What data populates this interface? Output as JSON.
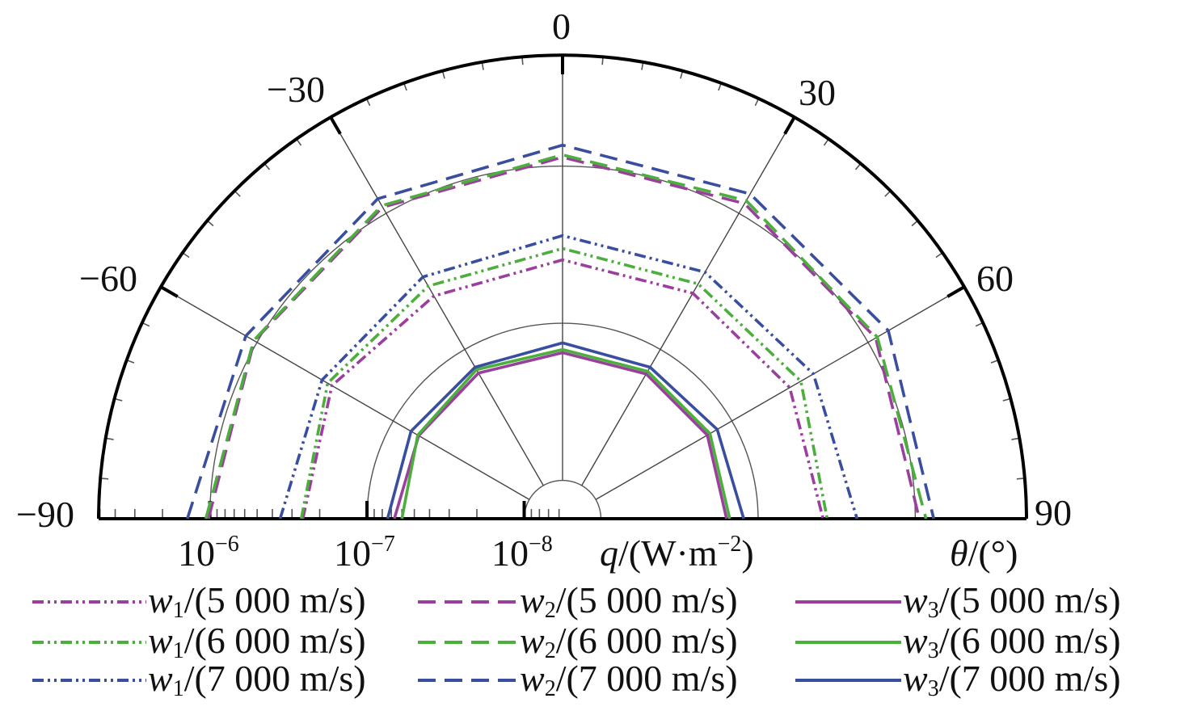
{
  "chart_data": {
    "type": "polar-line",
    "theta_label": {
      "symbol": "θ",
      "unit": "/(°)"
    },
    "r_label": {
      "symbol": "q",
      "unit_prefix": "/(W·m",
      "unit_exp": "−2",
      "unit_suffix": ")"
    },
    "theta_range": [
      -90,
      90
    ],
    "theta_ticks": [
      "−90",
      "−60",
      "−30",
      "0",
      "30",
      "60",
      "90"
    ],
    "theta_tick_values": [
      -90,
      -60,
      -30,
      0,
      30,
      60,
      90
    ],
    "r_scale": "log",
    "rlim": [
      5.7e-09,
      5.1e-06
    ],
    "r_ticks": [
      {
        "value": 1e-06,
        "base": "10",
        "exp": "−6"
      },
      {
        "value": 1e-07,
        "base": "10",
        "exp": "−7"
      },
      {
        "value": 1e-08,
        "base": "10",
        "exp": "−8"
      }
    ],
    "grid": true,
    "legend_position": "bottom",
    "theta": [
      -90,
      -60,
      -30,
      0,
      30,
      60,
      90
    ],
    "series": [
      {
        "name": "w1/(5 000 m/s)",
        "sym": "w",
        "sub": "1",
        "rest": "/(5 000 m/s)",
        "color": "#9b3f9e",
        "style": "dash-dot-dot",
        "values": [
          2.56e-07,
          2.82e-07,
          2.47e-07,
          2.53e-07,
          2.59e-07,
          2.66e-07,
          2.59e-07
        ]
      },
      {
        "name": "w1/(6 000 m/s)",
        "sym": "w",
        "sub": "1",
        "rest": "/(6 000 m/s)",
        "color": "#4cae3c",
        "style": "dash-dot-dot",
        "values": [
          2.62e-07,
          3.03e-07,
          2.92e-07,
          2.99e-07,
          3.03e-07,
          3.21e-07,
          2.75e-07
        ]
      },
      {
        "name": "w1/(7 000 m/s)",
        "sym": "w",
        "sub": "1",
        "rest": "/(7 000 m/s)",
        "color": "#3a4e9f",
        "style": "dash-dot-dot",
        "values": [
          3.57e-07,
          3.33e-07,
          3.41e-07,
          3.61e-07,
          3.7e-07,
          3.97e-07,
          4.26e-07
        ]
      },
      {
        "name": "w2/(5 000 m/s)",
        "sym": "w",
        "sub": "2",
        "rest": "/(5 000 m/s)",
        "color": "#9b3f9e",
        "style": "dashed",
        "values": [
          1.02e-06,
          1.05e-06,
          1.11e-06,
          1.14e-06,
          1.18e-06,
          1.14e-06,
          1.06e-06
        ]
      },
      {
        "name": "w2/(6 000 m/s)",
        "sym": "w",
        "sub": "2",
        "rest": "/(6 000 m/s)",
        "color": "#4cae3c",
        "style": "dashed",
        "values": [
          1.06e-06,
          1.06e-06,
          1.14e-06,
          1.18e-06,
          1.24e-06,
          1.17e-06,
          1.17e-06
        ]
      },
      {
        "name": "w2/(7 000 m/s)",
        "sym": "w",
        "sub": "2",
        "rest": "/(7 000 m/s)",
        "color": "#3a4e9f",
        "style": "dashed",
        "values": [
          1.39e-06,
          1.21e-06,
          1.28e-06,
          1.36e-06,
          1.39e-06,
          1.41e-06,
          1.31e-06
        ]
      },
      {
        "name": "w3/(5 000 m/s)",
        "sym": "w",
        "sub": "3",
        "rest": "/(5 000 m/s)",
        "color": "#9b3f9e",
        "style": "solid",
        "values": [
          6.7e-08,
          6.5e-08,
          6.7e-08,
          6.5e-08,
          6.6e-08,
          6.6e-08,
          6.3e-08
        ]
      },
      {
        "name": "w3/(6 000 m/s)",
        "sym": "w",
        "sub": "3",
        "rest": "/(6 000 m/s)",
        "color": "#4cae3c",
        "style": "solid",
        "values": [
          6e-08,
          6.6e-08,
          7.1e-08,
          6.8e-08,
          6.9e-08,
          6.9e-08,
          6.6e-08
        ]
      },
      {
        "name": "w3/(7 000 m/s)",
        "sym": "w",
        "sub": "3",
        "rest": "/(7 000 m/s)",
        "color": "#3a4e9f",
        "style": "solid",
        "values": [
          7.4e-08,
          7.4e-08,
          7.4e-08,
          7.5e-08,
          7.4e-08,
          7.8e-08,
          8.1e-08
        ]
      }
    ]
  }
}
